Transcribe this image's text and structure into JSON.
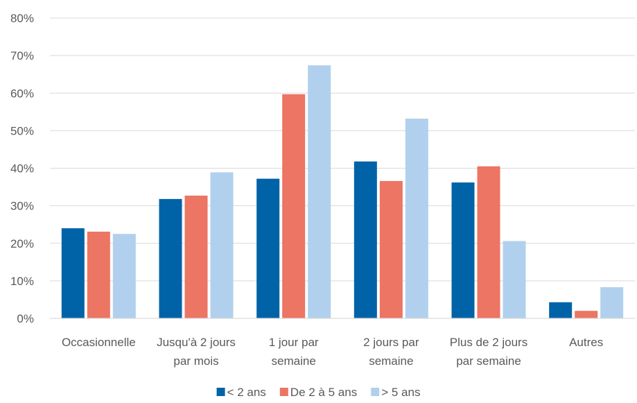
{
  "chart_data": {
    "type": "bar",
    "title": "",
    "xlabel": "",
    "ylabel": "",
    "ylim": [
      0,
      0.8
    ],
    "yticks": [
      "0%",
      "10%",
      "20%",
      "30%",
      "40%",
      "50%",
      "60%",
      "70%",
      "80%"
    ],
    "grid": true,
    "legend_position": "bottom",
    "categories": [
      [
        "Occasionnelle"
      ],
      [
        "Jusqu'à 2 jours",
        "par mois"
      ],
      [
        "1 jour par",
        "semaine"
      ],
      [
        "2 jours par",
        "semaine"
      ],
      [
        "Plus de 2 jours",
        "par semaine"
      ],
      [
        "Autres"
      ]
    ],
    "series": [
      {
        "name": "< 2 ans",
        "color": "#0063A8",
        "values": [
          0.24,
          0.318,
          0.372,
          0.418,
          0.362,
          0.043
        ]
      },
      {
        "name": "De 2 à 5 ans",
        "color": "#EC7563",
        "values": [
          0.231,
          0.327,
          0.597,
          0.366,
          0.405,
          0.02
        ]
      },
      {
        "name": "> 5 ans",
        "color": "#B1D0EE",
        "values": [
          0.225,
          0.389,
          0.674,
          0.532,
          0.206,
          0.083
        ]
      }
    ]
  }
}
